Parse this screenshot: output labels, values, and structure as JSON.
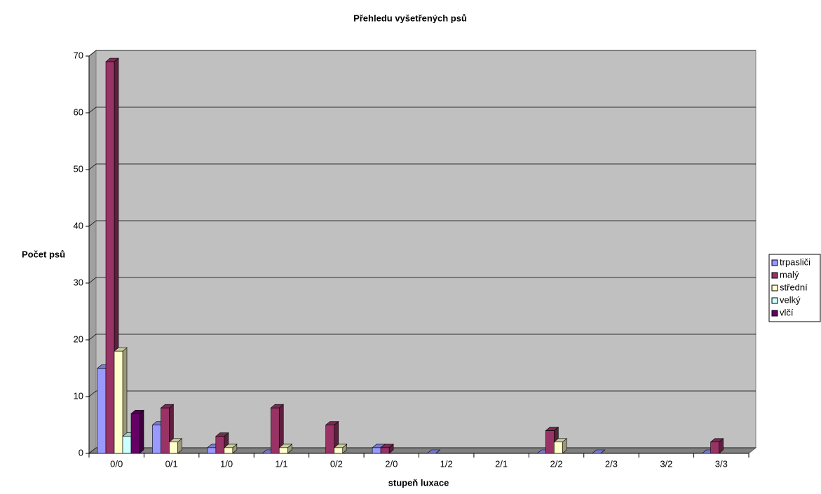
{
  "chart_data": {
    "type": "bar",
    "title": "Přehledu vyšetřených psů",
    "x_label": "stupeň luxace",
    "y_label": "Počet psů",
    "categories": [
      "0/0",
      "0/1",
      "1/0",
      "1/1",
      "0/2",
      "2/0",
      "1/2",
      "2/1",
      "2/2",
      "2/3",
      "3/2",
      "3/3"
    ],
    "series": [
      {
        "name": "trpasliči",
        "color": "#9999ff",
        "values": [
          15,
          5,
          1,
          0,
          null,
          1,
          0,
          null,
          0,
          0,
          null,
          0
        ]
      },
      {
        "name": "malý",
        "color": "#993366",
        "values": [
          69,
          8,
          3,
          8,
          5,
          1,
          null,
          null,
          4,
          null,
          null,
          2
        ]
      },
      {
        "name": "střední",
        "color": "#ffffcc",
        "values": [
          18,
          2,
          1,
          1,
          1,
          null,
          null,
          null,
          2,
          null,
          null,
          null
        ]
      },
      {
        "name": "velký",
        "color": "#ccffff",
        "values": [
          3,
          null,
          null,
          null,
          null,
          null,
          null,
          null,
          null,
          null,
          null,
          null
        ]
      },
      {
        "name": "vlčí",
        "color": "#660066",
        "values": [
          7,
          null,
          null,
          null,
          null,
          null,
          null,
          null,
          null,
          null,
          null,
          null
        ]
      }
    ],
    "ylim": [
      0,
      70
    ],
    "yticks": [
      0,
      10,
      20,
      30,
      40,
      50,
      60,
      70
    ],
    "grid": true,
    "legend": "right"
  }
}
